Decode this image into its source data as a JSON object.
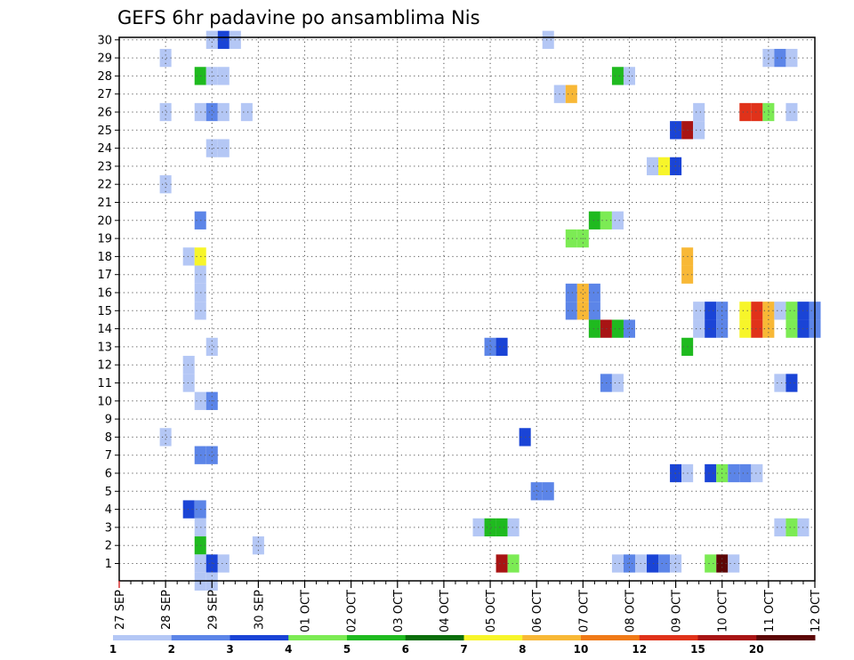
{
  "chart_data": {
    "type": "heatmap",
    "title": "GEFS 6hr padavine po ansamblima Nis",
    "xlabel": "",
    "ylabel": "",
    "x_tick_labels": [
      "27 SEP",
      "28 SEP",
      "29 SEP",
      "30 SEP",
      "01 OCT",
      "02 OCT",
      "03 OCT",
      "04 OCT",
      "05 OCT",
      "06 OCT",
      "07 OCT",
      "08 OCT",
      "09 OCT",
      "10 OCT",
      "11 OCT",
      "12 OCT"
    ],
    "y_tick_labels": [
      "1",
      "2",
      "3",
      "4",
      "5",
      "6",
      "7",
      "8",
      "9",
      "10",
      "11",
      "12",
      "13",
      "14",
      "15",
      "16",
      "17",
      "18",
      "19",
      "20",
      "21",
      "22",
      "23",
      "24",
      "25",
      "26",
      "27",
      "28",
      "29",
      "30"
    ],
    "x_time_step": "6hr",
    "grid": true,
    "legend_placement": "bottom",
    "colorbar": {
      "labels": [
        "1",
        "2",
        "3",
        "4",
        "5",
        "6",
        "7",
        "8",
        "10",
        "12",
        "15",
        "20"
      ],
      "colors": [
        "#b4c7f5",
        "#5c85e8",
        "#1a44d6",
        "#7ceb54",
        "#1fba1f",
        "#0a6e0a",
        "#f7f52a",
        "#f8b836",
        "#f07a17",
        "#e0321a",
        "#a81414",
        "#5c0606"
      ]
    },
    "cells": [
      {
        "ens": 30,
        "t": "29 SEP 00",
        "level": 1
      },
      {
        "ens": 30,
        "t": "29 SEP 06",
        "level": 3
      },
      {
        "ens": 30,
        "t": "29 SEP 12",
        "level": 1
      },
      {
        "ens": 30,
        "t": "06 OCT 06",
        "level": 1
      },
      {
        "ens": 29,
        "t": "28 SEP 00",
        "level": 1
      },
      {
        "ens": 29,
        "t": "11 OCT 00",
        "level": 1
      },
      {
        "ens": 29,
        "t": "11 OCT 06",
        "level": 2
      },
      {
        "ens": 29,
        "t": "11 OCT 12",
        "level": 1
      },
      {
        "ens": 28,
        "t": "28 SEP 18",
        "level": 5
      },
      {
        "ens": 28,
        "t": "29 SEP 00",
        "level": 1
      },
      {
        "ens": 28,
        "t": "29 SEP 06",
        "level": 1
      },
      {
        "ens": 28,
        "t": "07 OCT 18",
        "level": 5
      },
      {
        "ens": 28,
        "t": "08 OCT 00",
        "level": 1
      },
      {
        "ens": 27,
        "t": "06 OCT 12",
        "level": 1
      },
      {
        "ens": 27,
        "t": "06 OCT 18",
        "level": 8
      },
      {
        "ens": 26,
        "t": "28 SEP 00",
        "level": 1
      },
      {
        "ens": 26,
        "t": "28 SEP 18",
        "level": 1
      },
      {
        "ens": 26,
        "t": "29 SEP 00",
        "level": 2
      },
      {
        "ens": 26,
        "t": "29 SEP 06",
        "level": 1
      },
      {
        "ens": 26,
        "t": "29 SEP 18",
        "level": 1
      },
      {
        "ens": 26,
        "t": "09 OCT 12",
        "level": 1
      },
      {
        "ens": 26,
        "t": "10 OCT 12",
        "level": 12
      },
      {
        "ens": 26,
        "t": "10 OCT 18",
        "level": 12
      },
      {
        "ens": 26,
        "t": "11 OCT 00",
        "level": 4
      },
      {
        "ens": 26,
        "t": "11 OCT 12",
        "level": 1
      },
      {
        "ens": 25,
        "t": "09 OCT 00",
        "level": 3
      },
      {
        "ens": 25,
        "t": "09 OCT 06",
        "level": 15
      },
      {
        "ens": 25,
        "t": "09 OCT 12",
        "level": 1
      },
      {
        "ens": 24,
        "t": "29 SEP 00",
        "level": 1
      },
      {
        "ens": 24,
        "t": "29 SEP 06",
        "level": 1
      },
      {
        "ens": 23,
        "t": "08 OCT 12",
        "level": 1
      },
      {
        "ens": 23,
        "t": "08 OCT 18",
        "level": 7
      },
      {
        "ens": 23,
        "t": "09 OCT 00",
        "level": 3
      },
      {
        "ens": 22,
        "t": "28 SEP 00",
        "level": 1
      },
      {
        "ens": 20,
        "t": "28 SEP 18",
        "level": 2
      },
      {
        "ens": 20,
        "t": "07 OCT 06",
        "level": 5
      },
      {
        "ens": 20,
        "t": "07 OCT 12",
        "level": 4
      },
      {
        "ens": 20,
        "t": "07 OCT 18",
        "level": 1
      },
      {
        "ens": 19,
        "t": "06 OCT 18",
        "level": 4
      },
      {
        "ens": 19,
        "t": "07 OCT 00",
        "level": 4
      },
      {
        "ens": 18,
        "t": "28 SEP 12",
        "level": 1
      },
      {
        "ens": 18,
        "t": "28 SEP 18",
        "level": 7
      },
      {
        "ens": 18,
        "t": "09 OCT 06",
        "level": 8
      },
      {
        "ens": 17,
        "t": "28 SEP 18",
        "level": 1
      },
      {
        "ens": 17,
        "t": "09 OCT 06",
        "level": 8
      },
      {
        "ens": 16,
        "t": "28 SEP 18",
        "level": 1
      },
      {
        "ens": 16,
        "t": "06 OCT 18",
        "level": 2
      },
      {
        "ens": 16,
        "t": "07 OCT 00",
        "level": 8
      },
      {
        "ens": 16,
        "t": "07 OCT 06",
        "level": 2
      },
      {
        "ens": 15,
        "t": "28 SEP 18",
        "level": 1
      },
      {
        "ens": 15,
        "t": "06 OCT 18",
        "level": 2
      },
      {
        "ens": 15,
        "t": "07 OCT 00",
        "level": 8
      },
      {
        "ens": 15,
        "t": "07 OCT 06",
        "level": 2
      },
      {
        "ens": 15,
        "t": "09 OCT 12",
        "level": 1
      },
      {
        "ens": 15,
        "t": "09 OCT 18",
        "level": 3
      },
      {
        "ens": 15,
        "t": "10 OCT 00",
        "level": 2
      },
      {
        "ens": 15,
        "t": "10 OCT 12",
        "level": 7
      },
      {
        "ens": 15,
        "t": "10 OCT 18",
        "level": 12
      },
      {
        "ens": 15,
        "t": "11 OCT 00",
        "level": 8
      },
      {
        "ens": 15,
        "t": "11 OCT 06",
        "level": 1
      },
      {
        "ens": 15,
        "t": "11 OCT 12",
        "level": 4
      },
      {
        "ens": 15,
        "t": "11 OCT 18",
        "level": 3
      },
      {
        "ens": 15,
        "t": "12 OCT 00",
        "level": 2
      },
      {
        "ens": 14,
        "t": "07 OCT 06",
        "level": 5
      },
      {
        "ens": 14,
        "t": "07 OCT 12",
        "level": 15
      },
      {
        "ens": 14,
        "t": "07 OCT 18",
        "level": 5
      },
      {
        "ens": 14,
        "t": "08 OCT 00",
        "level": 2
      },
      {
        "ens": 14,
        "t": "09 OCT 12",
        "level": 1
      },
      {
        "ens": 14,
        "t": "09 OCT 18",
        "level": 3
      },
      {
        "ens": 14,
        "t": "10 OCT 00",
        "level": 2
      },
      {
        "ens": 14,
        "t": "10 OCT 12",
        "level": 7
      },
      {
        "ens": 14,
        "t": "10 OCT 18",
        "level": 12
      },
      {
        "ens": 14,
        "t": "11 OCT 00",
        "level": 8
      },
      {
        "ens": 14,
        "t": "11 OCT 12",
        "level": 4
      },
      {
        "ens": 14,
        "t": "11 OCT 18",
        "level": 3
      },
      {
        "ens": 14,
        "t": "12 OCT 00",
        "level": 2
      },
      {
        "ens": 13,
        "t": "29 SEP 00",
        "level": 1
      },
      {
        "ens": 13,
        "t": "05 OCT 00",
        "level": 2
      },
      {
        "ens": 13,
        "t": "05 OCT 06",
        "level": 3
      },
      {
        "ens": 13,
        "t": "09 OCT 06",
        "level": 5
      },
      {
        "ens": 12,
        "t": "28 SEP 12",
        "level": 1
      },
      {
        "ens": 11,
        "t": "28 SEP 12",
        "level": 1
      },
      {
        "ens": 11,
        "t": "07 OCT 12",
        "level": 2
      },
      {
        "ens": 11,
        "t": "07 OCT 18",
        "level": 1
      },
      {
        "ens": 11,
        "t": "11 OCT 06",
        "level": 1
      },
      {
        "ens": 11,
        "t": "11 OCT 12",
        "level": 3
      },
      {
        "ens": 10,
        "t": "28 SEP 18",
        "level": 1
      },
      {
        "ens": 10,
        "t": "29 SEP 00",
        "level": 2
      },
      {
        "ens": 8,
        "t": "28 SEP 00",
        "level": 1
      },
      {
        "ens": 8,
        "t": "05 OCT 18",
        "level": 3
      },
      {
        "ens": 7,
        "t": "28 SEP 18",
        "level": 2
      },
      {
        "ens": 7,
        "t": "29 SEP 00",
        "level": 2
      },
      {
        "ens": 6,
        "t": "09 OCT 00",
        "level": 3
      },
      {
        "ens": 6,
        "t": "09 OCT 06",
        "level": 1
      },
      {
        "ens": 6,
        "t": "09 OCT 18",
        "level": 3
      },
      {
        "ens": 6,
        "t": "10 OCT 00",
        "level": 4
      },
      {
        "ens": 6,
        "t": "10 OCT 06",
        "level": 2
      },
      {
        "ens": 6,
        "t": "10 OCT 12",
        "level": 2
      },
      {
        "ens": 6,
        "t": "10 OCT 18",
        "level": 1
      },
      {
        "ens": 5,
        "t": "06 OCT 00",
        "level": 2
      },
      {
        "ens": 5,
        "t": "06 OCT 06",
        "level": 2
      },
      {
        "ens": 4,
        "t": "28 SEP 12",
        "level": 3
      },
      {
        "ens": 4,
        "t": "28 SEP 18",
        "level": 2
      },
      {
        "ens": 3,
        "t": "28 SEP 18",
        "level": 1
      },
      {
        "ens": 3,
        "t": "04 OCT 18",
        "level": 1
      },
      {
        "ens": 3,
        "t": "05 OCT 00",
        "level": 5
      },
      {
        "ens": 3,
        "t": "05 OCT 06",
        "level": 5
      },
      {
        "ens": 3,
        "t": "05 OCT 12",
        "level": 1
      },
      {
        "ens": 3,
        "t": "11 OCT 06",
        "level": 1
      },
      {
        "ens": 3,
        "t": "11 OCT 12",
        "level": 4
      },
      {
        "ens": 3,
        "t": "11 OCT 18",
        "level": 1
      },
      {
        "ens": 2,
        "t": "28 SEP 18",
        "level": 5
      },
      {
        "ens": 2,
        "t": "30 SEP 00",
        "level": 1
      },
      {
        "ens": 1,
        "t": "28 SEP 18",
        "level": 1
      },
      {
        "ens": 1,
        "t": "29 SEP 00",
        "level": 3
      },
      {
        "ens": 1,
        "t": "29 SEP 06",
        "level": 1
      },
      {
        "ens": 1,
        "t": "05 OCT 06",
        "level": 15
      },
      {
        "ens": 1,
        "t": "05 OCT 12",
        "level": 4
      },
      {
        "ens": 1,
        "t": "07 OCT 18",
        "level": 1
      },
      {
        "ens": 1,
        "t": "08 OCT 00",
        "level": 2
      },
      {
        "ens": 1,
        "t": "08 OCT 06",
        "level": 1
      },
      {
        "ens": 1,
        "t": "08 OCT 12",
        "level": 3
      },
      {
        "ens": 1,
        "t": "08 OCT 18",
        "level": 2
      },
      {
        "ens": 1,
        "t": "09 OCT 00",
        "level": 1
      },
      {
        "ens": 1,
        "t": "09 OCT 18",
        "level": 4
      },
      {
        "ens": 1,
        "t": "10 OCT 00",
        "level": 20
      },
      {
        "ens": 1,
        "t": "10 OCT 06",
        "level": 1
      },
      {
        "ens": 0,
        "t": "28 SEP 18",
        "level": 1
      },
      {
        "ens": 0,
        "t": "29 SEP 00",
        "level": 1
      }
    ]
  }
}
